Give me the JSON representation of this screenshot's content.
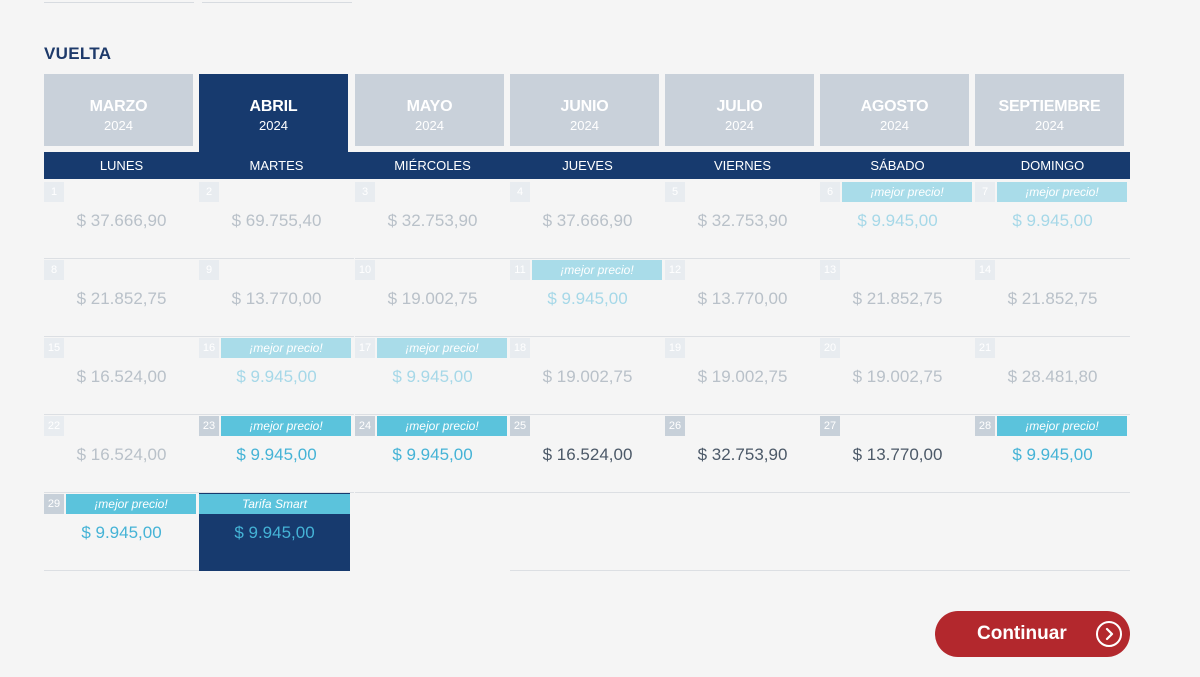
{
  "section_title": "VUELTA",
  "months": [
    {
      "name": "MARZO",
      "year": "2024",
      "active": false
    },
    {
      "name": "ABRIL",
      "year": "2024",
      "active": true
    },
    {
      "name": "MAYO",
      "year": "2024",
      "active": false
    },
    {
      "name": "JUNIO",
      "year": "2024",
      "active": false
    },
    {
      "name": "JULIO",
      "year": "2024",
      "active": false
    },
    {
      "name": "AGOSTO",
      "year": "2024",
      "active": false
    },
    {
      "name": "SEPTIEMBRE",
      "year": "2024",
      "active": false
    }
  ],
  "weekdays": [
    "LUNES",
    "MARTES",
    "MIÉRCOLES",
    "JUEVES",
    "VIERNES",
    "SÁBADO",
    "DOMINGO"
  ],
  "days": [
    {
      "day": "1",
      "price": "$ 37.666,90",
      "available": false,
      "badge": ""
    },
    {
      "day": "2",
      "price": "$ 69.755,40",
      "available": false,
      "badge": ""
    },
    {
      "day": "3",
      "price": "$ 32.753,90",
      "available": false,
      "badge": ""
    },
    {
      "day": "4",
      "price": "$ 37.666,90",
      "available": false,
      "badge": ""
    },
    {
      "day": "5",
      "price": "$ 32.753,90",
      "available": false,
      "badge": ""
    },
    {
      "day": "6",
      "price": "$ 9.945,00",
      "available": false,
      "badge": "¡mejor precio!"
    },
    {
      "day": "7",
      "price": "$ 9.945,00",
      "available": false,
      "badge": "¡mejor precio!"
    },
    {
      "day": "8",
      "price": "$ 21.852,75",
      "available": false,
      "badge": ""
    },
    {
      "day": "9",
      "price": "$ 13.770,00",
      "available": false,
      "badge": ""
    },
    {
      "day": "10",
      "price": "$ 19.002,75",
      "available": false,
      "badge": ""
    },
    {
      "day": "11",
      "price": "$ 9.945,00",
      "available": false,
      "badge": "¡mejor precio!"
    },
    {
      "day": "12",
      "price": "$ 13.770,00",
      "available": false,
      "badge": ""
    },
    {
      "day": "13",
      "price": "$ 21.852,75",
      "available": false,
      "badge": ""
    },
    {
      "day": "14",
      "price": "$ 21.852,75",
      "available": false,
      "badge": ""
    },
    {
      "day": "15",
      "price": "$ 16.524,00",
      "available": false,
      "badge": ""
    },
    {
      "day": "16",
      "price": "$ 9.945,00",
      "available": false,
      "badge": "¡mejor precio!"
    },
    {
      "day": "17",
      "price": "$ 9.945,00",
      "available": false,
      "badge": "¡mejor precio!"
    },
    {
      "day": "18",
      "price": "$ 19.002,75",
      "available": false,
      "badge": ""
    },
    {
      "day": "19",
      "price": "$ 19.002,75",
      "available": false,
      "badge": ""
    },
    {
      "day": "20",
      "price": "$ 19.002,75",
      "available": false,
      "badge": ""
    },
    {
      "day": "21",
      "price": "$ 28.481,80",
      "available": false,
      "badge": ""
    },
    {
      "day": "22",
      "price": "$ 16.524,00",
      "available": false,
      "badge": ""
    },
    {
      "day": "23",
      "price": "$ 9.945,00",
      "available": true,
      "badge": "¡mejor precio!"
    },
    {
      "day": "24",
      "price": "$ 9.945,00",
      "available": true,
      "badge": "¡mejor precio!"
    },
    {
      "day": "25",
      "price": "$ 16.524,00",
      "available": true,
      "badge": ""
    },
    {
      "day": "26",
      "price": "$ 32.753,90",
      "available": true,
      "badge": ""
    },
    {
      "day": "27",
      "price": "$ 13.770,00",
      "available": true,
      "badge": ""
    },
    {
      "day": "28",
      "price": "$ 9.945,00",
      "available": true,
      "badge": "¡mejor precio!"
    },
    {
      "day": "29",
      "price": "$ 9.945,00",
      "available": true,
      "badge": "¡mejor precio!"
    },
    {
      "day": "30",
      "price": "$ 9.945,00",
      "available": true,
      "selected": true,
      "badge": "Tarifa Smart"
    }
  ],
  "continue_label": "Continuar",
  "colors": {
    "navy": "#173a6e",
    "month_inactive": "#c9d1da",
    "best_badge": "#5bc3dc",
    "best_badge_muted": "#a9dce9",
    "selected_day_num": "#f2a30d",
    "continue_button": "#b3282d"
  }
}
